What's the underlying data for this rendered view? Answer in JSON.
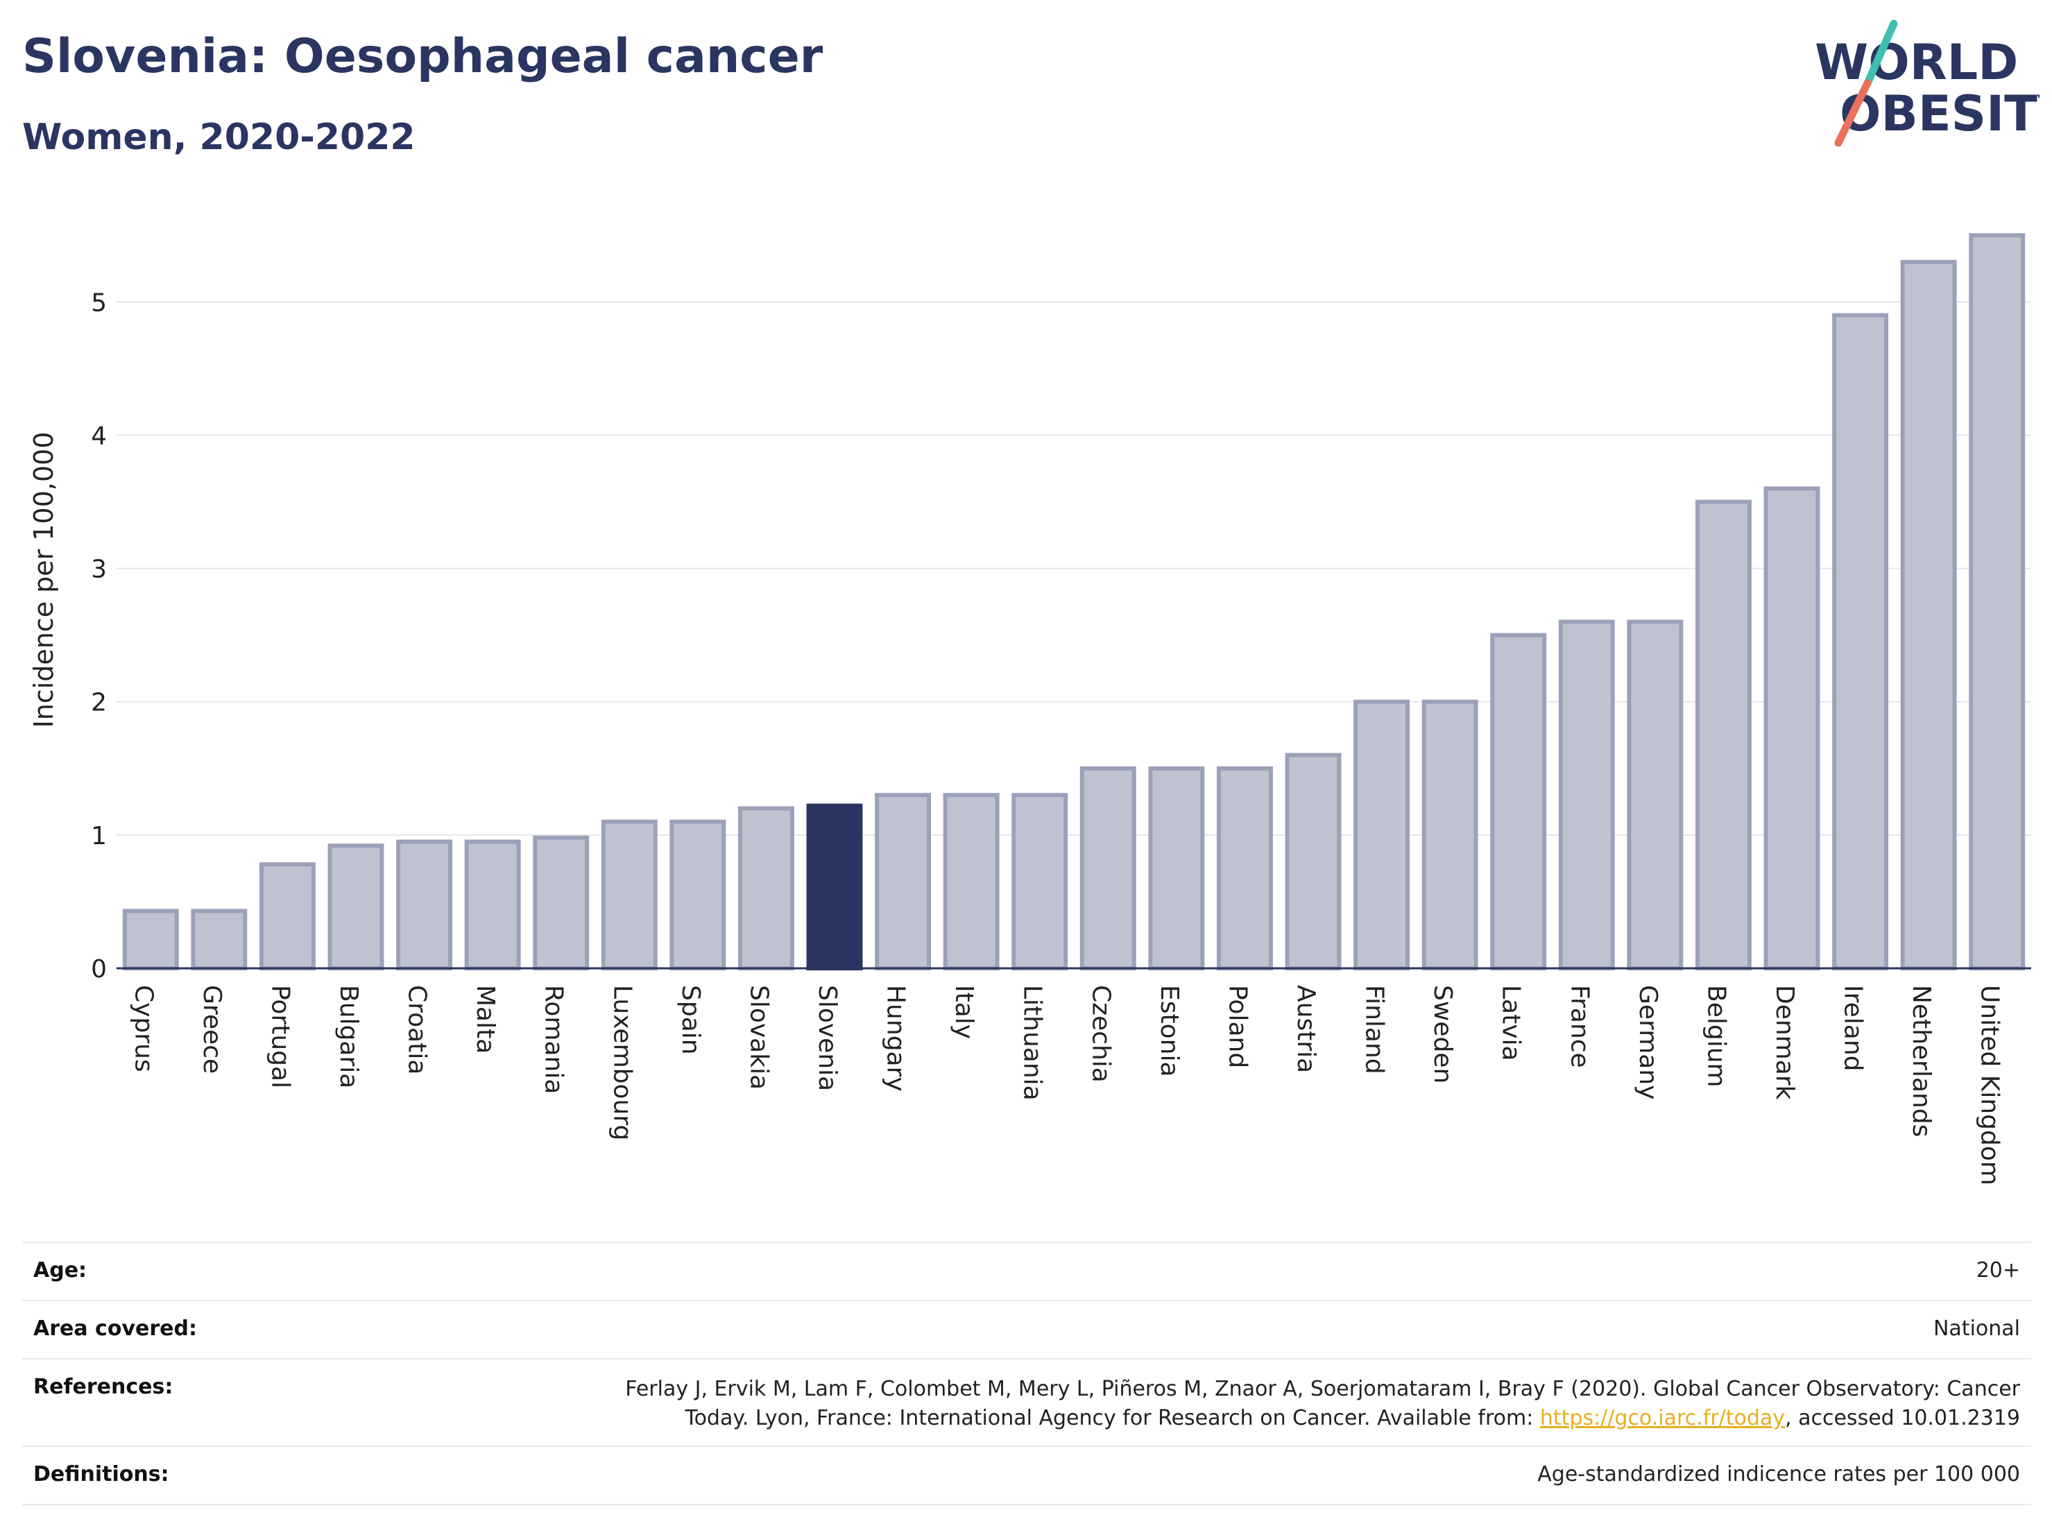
{
  "header": {
    "title": "Slovenia: Oesophageal cancer",
    "subtitle": "Women, 2020-2022"
  },
  "logo": {
    "line1": "WORLD",
    "line2": "OBESITY",
    "name": "world-obesity-logo",
    "slash_color_top": "#3fbfb0",
    "slash_color_bottom": "#e8725c"
  },
  "chart_data": {
    "type": "bar",
    "ylabel": "Incidence per 100,000",
    "xlabel": "",
    "ylim": [
      0,
      5.6
    ],
    "yticks": [
      0,
      1,
      2,
      3,
      4,
      5
    ],
    "grid": true,
    "highlight": "Slovenia",
    "colors": {
      "bar": "#bfc3d0",
      "bar_edge": "#9ba1b8",
      "highlight": "#2a3561"
    },
    "categories": [
      "Cyprus",
      "Greece",
      "Portugal",
      "Bulgaria",
      "Croatia",
      "Malta",
      "Romania",
      "Luxembourg",
      "Spain",
      "Slovakia",
      "Slovenia",
      "Hungary",
      "Italy",
      "Lithuania",
      "Czechia",
      "Estonia",
      "Poland",
      "Austria",
      "Finland",
      "Sweden",
      "Latvia",
      "France",
      "Germany",
      "Belgium",
      "Denmark",
      "Ireland",
      "Netherlands",
      "United Kingdom"
    ],
    "values": [
      0.43,
      0.43,
      0.78,
      0.92,
      0.95,
      0.95,
      0.98,
      1.1,
      1.1,
      1.2,
      1.22,
      1.3,
      1.3,
      1.3,
      1.5,
      1.5,
      1.5,
      1.6,
      2.0,
      2.0,
      2.5,
      2.6,
      2.6,
      3.5,
      3.6,
      4.9,
      5.3,
      5.5
    ]
  },
  "info": {
    "age_label": "Age:",
    "age_value": "20+",
    "area_label": "Area covered:",
    "area_value": "National",
    "references_label": "References:",
    "references_line1": "Ferlay J, Ervik M, Lam F, Colombet M, Mery L, Piñeros M, Znaor A, Soerjomataram I, Bray F (2020). Global Cancer Observatory: Cancer",
    "references_line2_pre": "Today. Lyon, France: International Agency for Research on Cancer. Available from: ",
    "references_link": "https://gco.iarc.fr/today",
    "references_line2_post": ", accessed 10.01.2319",
    "definitions_label": "Definitions:",
    "definitions_value": "Age-standardized indicence rates per 100 000"
  }
}
